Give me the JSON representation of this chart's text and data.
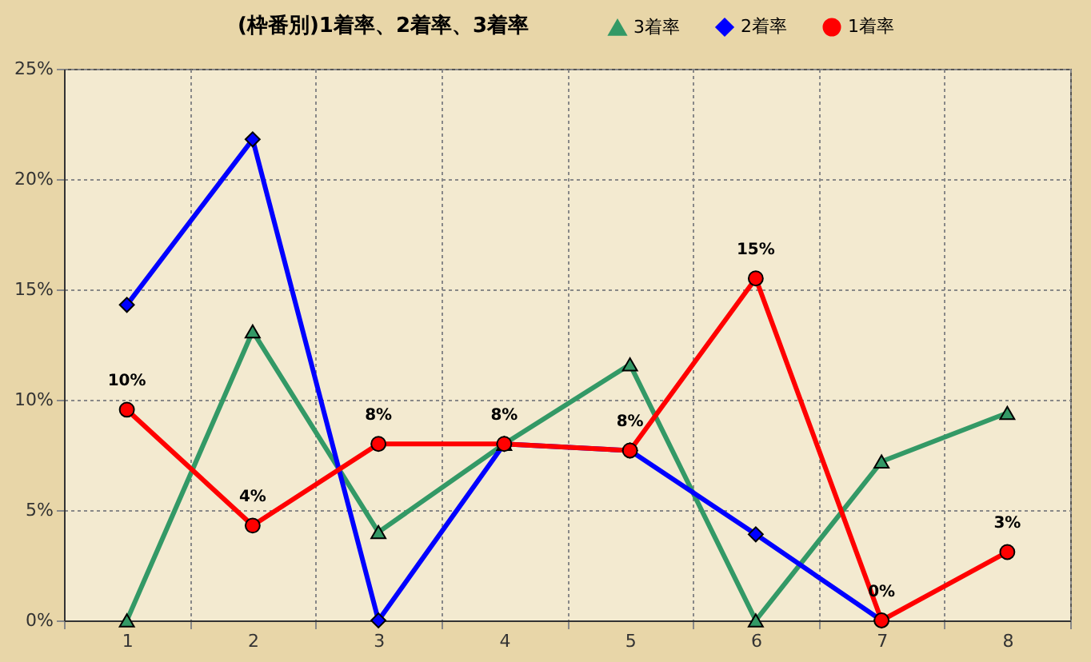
{
  "chart_data": {
    "type": "line",
    "title": "(枠番別)1着率、2着率、3着率",
    "categories": [
      "1",
      "2",
      "3",
      "4",
      "5",
      "6",
      "7",
      "8"
    ],
    "series": [
      {
        "name": "3着率",
        "color": "#339966",
        "marker": "triangle",
        "values": [
          0,
          13.1,
          4.0,
          8.0,
          11.6,
          0,
          7.2,
          9.4
        ]
      },
      {
        "name": "2着率",
        "color": "#0000ff",
        "marker": "diamond",
        "values": [
          14.3,
          21.8,
          0,
          8.0,
          7.7,
          3.9,
          0,
          null
        ]
      },
      {
        "name": "1着率",
        "color": "#ff0000",
        "marker": "circle",
        "values": [
          9.55,
          4.3,
          8.0,
          8.0,
          7.7,
          15.5,
          0,
          3.1
        ],
        "value_labels": [
          "10%",
          "4%",
          "8%",
          "8%",
          "8%",
          "15%",
          "0%",
          "3%"
        ]
      }
    ],
    "ylim": [
      0,
      25
    ],
    "yticks": [
      {
        "value": 0,
        "label": "0%"
      },
      {
        "value": 5,
        "label": "5%"
      },
      {
        "value": 10,
        "label": "10%"
      },
      {
        "value": 15,
        "label": "15%"
      },
      {
        "value": 20,
        "label": "20%"
      },
      {
        "value": 25,
        "label": "25%"
      }
    ],
    "grid": true,
    "legend": "top right",
    "line_style": "solid"
  }
}
